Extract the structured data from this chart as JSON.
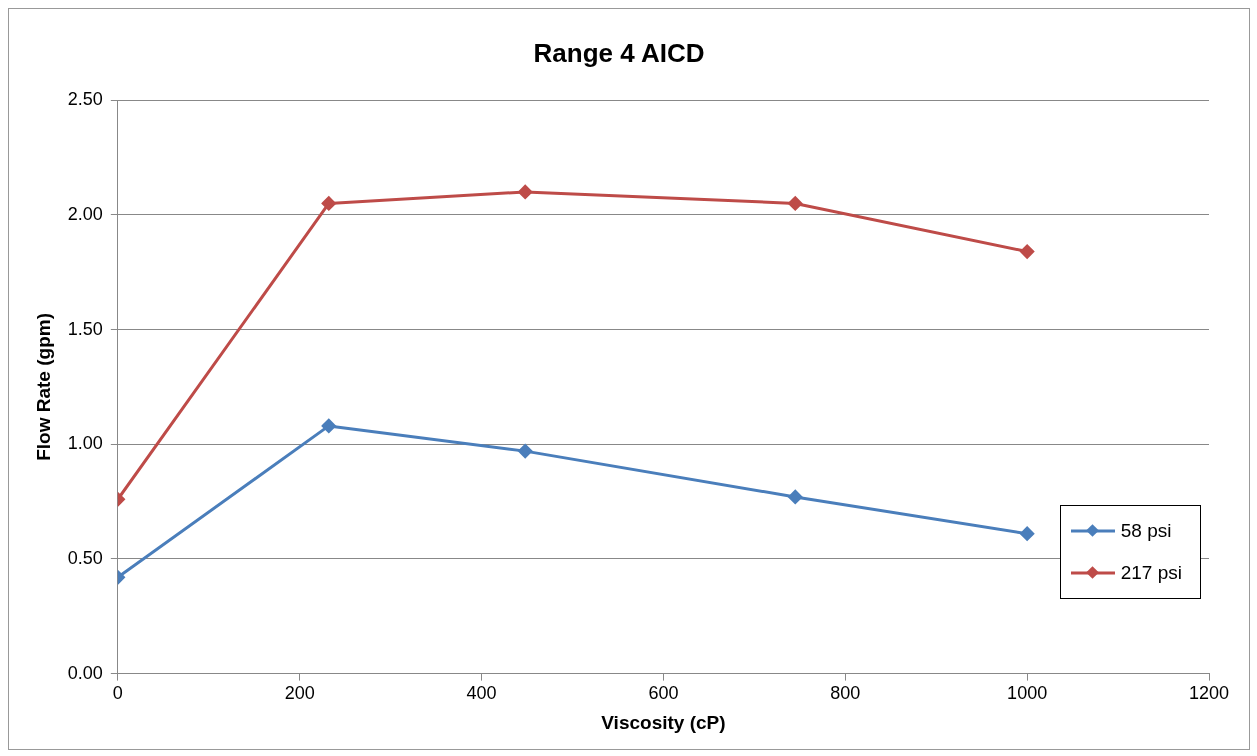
{
  "chart_data": {
    "type": "line",
    "title": "Range 4 AICD",
    "xlabel": "Viscosity (cP)",
    "ylabel": "Flow Rate (gpm)",
    "x": [
      0,
      232,
      448,
      745,
      1000
    ],
    "series": [
      {
        "name": "58 psi",
        "color": "#4a7ebb",
        "values": [
          0.42,
          1.08,
          0.97,
          0.77,
          0.61
        ]
      },
      {
        "name": "217 psi",
        "color": "#be4b48",
        "values": [
          0.76,
          2.05,
          2.1,
          2.05,
          1.84
        ]
      }
    ],
    "xlim": [
      0,
      1200
    ],
    "xticks": [
      0,
      200,
      400,
      600,
      800,
      1000,
      1200
    ],
    "ylim": [
      0,
      2.5
    ],
    "yticks": [
      {
        "value": 0,
        "label": "0.00"
      },
      {
        "value": 0.5,
        "label": "0.50"
      },
      {
        "value": 1,
        "label": "1.00"
      },
      {
        "value": 1.5,
        "label": "1.50"
      },
      {
        "value": 2,
        "label": "2.00"
      },
      {
        "value": 2.5,
        "label": "2.50"
      }
    ],
    "grid": "y",
    "legend": "bottom right",
    "marker": "diamond",
    "line_style": "solid"
  }
}
